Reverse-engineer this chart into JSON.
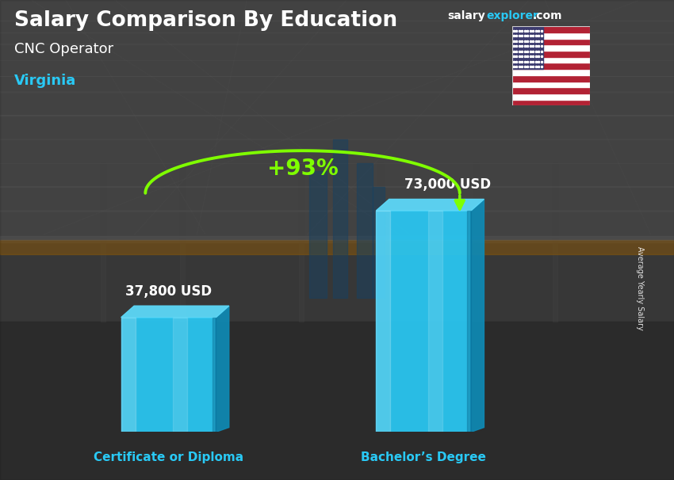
{
  "title_main": "Salary Comparison By Education",
  "subtitle1": "CNC Operator",
  "subtitle2": "Virginia",
  "categories": [
    "Certificate or Diploma",
    "Bachelor’s Degree"
  ],
  "values": [
    37800,
    73000
  ],
  "value_labels": [
    "37,800 USD",
    "73,000 USD"
  ],
  "pct_label": "+93%",
  "bar_color_front": "#29c9f5",
  "bar_color_top": "#5dd8f8",
  "bar_color_right": "#0e8ab5",
  "ylabel_text": "Average Yearly Salary",
  "title_color": "#ffffff",
  "subtitle1_color": "#ffffff",
  "subtitle2_color": "#29c9f5",
  "xticklabel_color": "#29c9f5",
  "pct_color": "#7fff00",
  "value_label_color": "#ffffff",
  "salary_text_color": "#ffffff",
  "explorer_text_color": "#29c9f5",
  "bg_dark": "#3a3a3a",
  "bg_mid": "#555555",
  "bg_light": "#888888"
}
